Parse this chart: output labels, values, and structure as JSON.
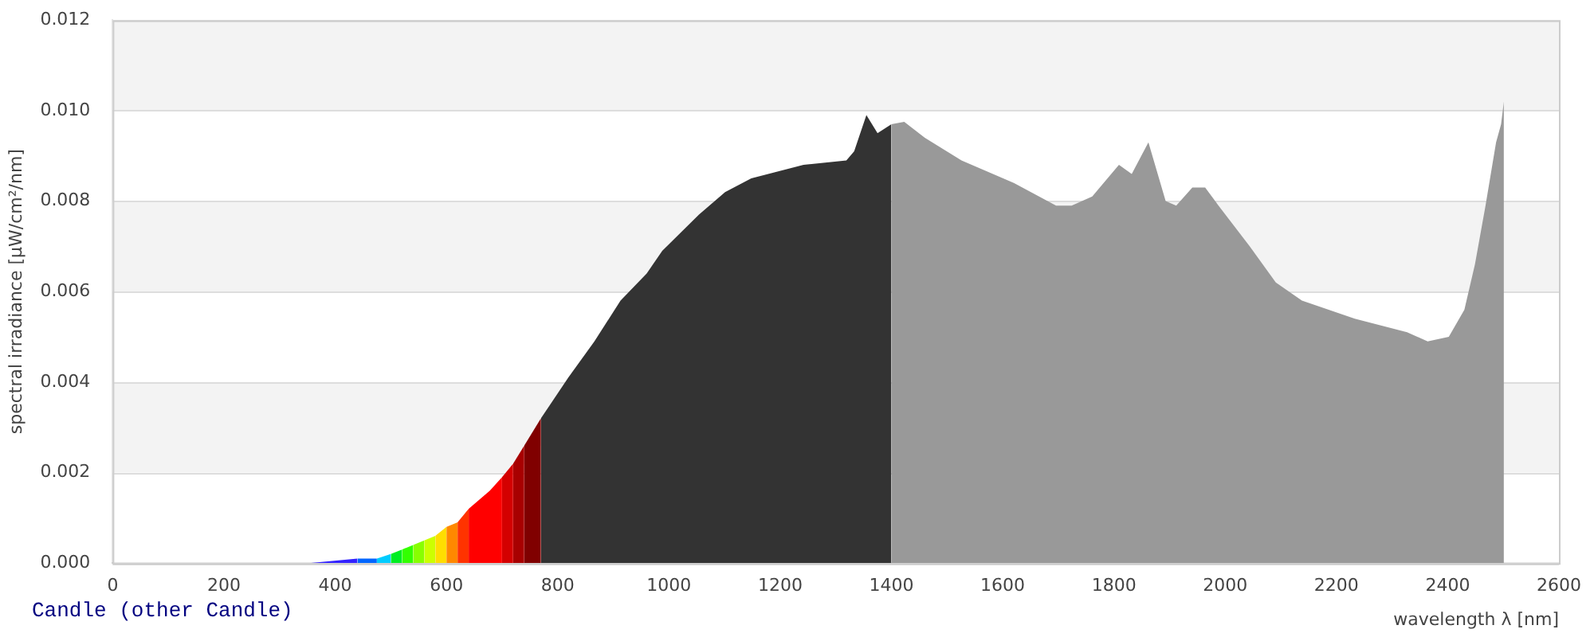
{
  "chart_data": {
    "type": "area",
    "xlabel": "wavelength λ [nm]",
    "ylabel": "spectral irradiance [µW/cm²/nm]",
    "annotations": [
      "Candle (other Candle)"
    ],
    "xlim": [
      0,
      2600
    ],
    "xticks": [
      0,
      200,
      400,
      600,
      800,
      1000,
      1200,
      1400,
      1600,
      1800,
      2000,
      2200,
      2400,
      2600
    ],
    "ylim": [
      0,
      0.012
    ],
    "yticks": [
      {
        "value": 0,
        "label": "0.000"
      },
      {
        "value": 0.002,
        "label": "0.002"
      },
      {
        "value": 0.004,
        "label": "0.004"
      },
      {
        "value": 0.006,
        "label": "0.006"
      },
      {
        "value": 0.008,
        "label": "0.008"
      },
      {
        "value": 0.01,
        "label": "0.010"
      },
      {
        "value": 0.012,
        "label": "0.012"
      }
    ],
    "grid": "y",
    "legend": false,
    "series": [
      {
        "color": "#3322ff",
        "x": [
          353,
          440
        ],
        "values": [
          0,
          0.0001
        ]
      },
      {
        "color": "#0066ff",
        "x": [
          440,
          475
        ],
        "values": [
          0.0001,
          0.0001
        ]
      },
      {
        "color": "#00ccff",
        "x": [
          475,
          500
        ],
        "values": [
          0.0001,
          0.0002
        ]
      },
      {
        "color": "#00ee22",
        "x": [
          500,
          520
        ],
        "values": [
          0.0002,
          0.0003
        ]
      },
      {
        "color": "#33ff00",
        "x": [
          520,
          540
        ],
        "values": [
          0.0003,
          0.0004
        ]
      },
      {
        "color": "#88ff00",
        "x": [
          540,
          560
        ],
        "values": [
          0.0004,
          0.0005
        ]
      },
      {
        "color": "#ccff00",
        "x": [
          560,
          580
        ],
        "values": [
          0.0005,
          0.0006
        ]
      },
      {
        "color": "#ffdd00",
        "x": [
          580,
          600
        ],
        "values": [
          0.0006,
          0.0008
        ]
      },
      {
        "color": "#ff8800",
        "x": [
          600,
          620
        ],
        "values": [
          0.0008,
          0.0009
        ]
      },
      {
        "color": "#ff3300",
        "x": [
          620,
          640
        ],
        "values": [
          0.0009,
          0.0012
        ]
      },
      {
        "color": "#ff0000",
        "x": [
          640,
          678,
          700
        ],
        "values": [
          0.0012,
          0.0016,
          0.0019
        ]
      },
      {
        "color": "#d40000",
        "x": [
          700,
          720
        ],
        "values": [
          0.0019,
          0.0022
        ]
      },
      {
        "color": "#a80000",
        "x": [
          720,
          740
        ],
        "values": [
          0.0022,
          0.0026
        ]
      },
      {
        "color": "#800000",
        "x": [
          740,
          770
        ],
        "values": [
          0.0026,
          0.0032
        ]
      },
      {
        "color": "#333333",
        "x": [
          770,
          819,
          866,
          913,
          960,
          988,
          1054,
          1101,
          1148,
          1242,
          1319,
          1333,
          1355,
          1375,
          1400
        ],
        "values": [
          0.0032,
          0.0041,
          0.0049,
          0.0058,
          0.0064,
          0.0069,
          0.0077,
          0.0082,
          0.0085,
          0.0088,
          0.0089,
          0.0091,
          0.0099,
          0.0095,
          0.0097
        ]
      },
      {
        "color": "#999999",
        "x": [
          1400,
          1423,
          1460,
          1526,
          1620,
          1696,
          1724,
          1761,
          1809,
          1832,
          1862,
          1893,
          1912,
          1941,
          1964,
          1988,
          2044,
          2091,
          2138,
          2233,
          2327,
          2364,
          2402,
          2430,
          2449,
          2468,
          2487,
          2496,
          2501
        ],
        "values": [
          0.0097,
          0.00975,
          0.0094,
          0.0089,
          0.0084,
          0.0079,
          0.0079,
          0.0081,
          0.0088,
          0.0086,
          0.0093,
          0.008,
          0.0079,
          0.0083,
          0.0083,
          0.0079,
          0.007,
          0.0062,
          0.0058,
          0.0054,
          0.0051,
          0.0049,
          0.005,
          0.0056,
          0.0066,
          0.0079,
          0.0093,
          0.0097,
          0.0102
        ]
      }
    ]
  }
}
